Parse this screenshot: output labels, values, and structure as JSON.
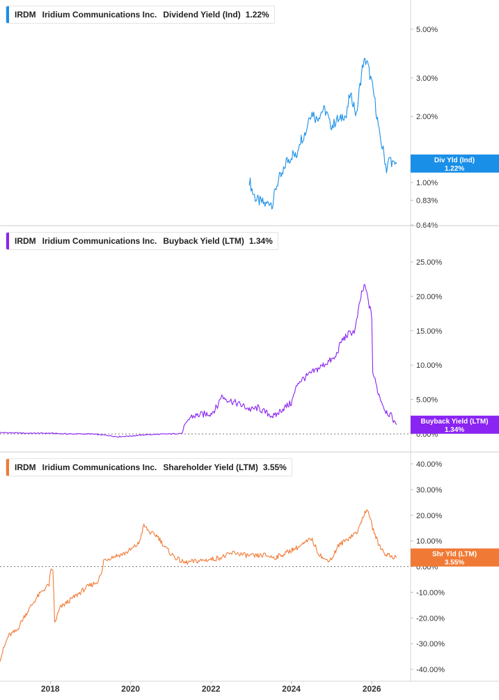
{
  "chart_data": [
    {
      "type": "line",
      "ticker": "IRDM",
      "company": "Iridium Communications Inc.",
      "metric": "Dividend Yield (Ind)",
      "current_value": "1.22%",
      "badge": [
        "Div Yld (Ind)",
        "1.22%"
      ],
      "color": "#1a8fe8",
      "yscale": "log",
      "ylim": [
        0.64,
        6.2
      ],
      "y_ticks": [
        {
          "v": 5.0,
          "label": "5.00%"
        },
        {
          "v": 3.0,
          "label": "3.00%"
        },
        {
          "v": 2.0,
          "label": "2.00%"
        },
        {
          "v": 1.0,
          "label": "1.00%"
        },
        {
          "v": 0.83,
          "label": "0.83%"
        },
        {
          "v": 0.64,
          "label": "0.64%"
        }
      ],
      "series": [
        {
          "x": [
            "2022-12-15",
            "2023-01-15",
            "2023-02-15",
            "2023-03-15",
            "2023-04-15",
            "2023-05-15",
            "2023-06-15",
            "2023-07-15",
            "2023-08-15",
            "2023-09-15",
            "2023-10-15",
            "2023-11-15",
            "2023-12-15",
            "2024-01-15",
            "2024-02-15",
            "2024-03-15",
            "2024-04-15",
            "2024-05-15",
            "2024-06-15",
            "2024-07-15",
            "2024-08-15",
            "2024-09-15",
            "2024-10-15",
            "2024-11-15",
            "2024-12-15",
            "2025-01-15",
            "2025-02-15",
            "2025-03-15",
            "2025-04-15",
            "2025-05-15",
            "2025-06-15",
            "2025-07-15",
            "2025-08-15",
            "2025-09-15",
            "2025-10-15",
            "2025-11-15",
            "2025-12-15",
            "2026-01-15",
            "2026-02-15",
            "2026-03-15",
            "2026-04-15",
            "2026-05-15",
            "2026-06-15",
            "2026-07-15",
            "2026-08-15"
          ],
          "values": [
            1.03,
            0.9,
            0.84,
            0.82,
            0.81,
            0.79,
            0.82,
            0.8,
            0.95,
            1.05,
            1.08,
            1.25,
            1.28,
            1.35,
            1.3,
            1.55,
            1.62,
            1.72,
            2.05,
            2.08,
            1.95,
            2.05,
            2.15,
            2.1,
            1.85,
            1.82,
            1.95,
            1.9,
            2.05,
            1.98,
            2.5,
            2.35,
            2.0,
            2.75,
            3.5,
            3.6,
            3.1,
            2.6,
            2.05,
            1.6,
            1.4,
            1.15,
            1.3,
            1.2,
            1.22
          ]
        }
      ]
    },
    {
      "type": "line",
      "ticker": "IRDM",
      "company": "Iridium Communications Inc.",
      "metric": "Buyback Yield (LTM)",
      "current_value": "1.34%",
      "badge": [
        "Buyback Yield (LTM)",
        "1.34%"
      ],
      "color": "#8a24f2",
      "yscale": "linear",
      "ylim": [
        -1.0,
        28.0
      ],
      "zero_line": true,
      "y_ticks": [
        {
          "v": 25,
          "label": "25.00%"
        },
        {
          "v": 20,
          "label": "20.00%"
        },
        {
          "v": 15,
          "label": "15.00%"
        },
        {
          "v": 10,
          "label": "10.00%"
        },
        {
          "v": 5,
          "label": "5.00%"
        },
        {
          "v": 0,
          "label": "0.00%"
        }
      ],
      "series": [
        {
          "x": [
            "2016-10-01",
            "2017-06-01",
            "2018-01-01",
            "2018-06-01",
            "2019-01-01",
            "2019-06-01",
            "2019-09-01",
            "2020-01-01",
            "2020-06-01",
            "2021-01-01",
            "2021-04-15",
            "2021-05-01",
            "2021-07-01",
            "2021-10-01",
            "2022-01-01",
            "2022-03-01",
            "2022-04-01",
            "2022-06-01",
            "2022-08-01",
            "2022-10-01",
            "2023-01-01",
            "2023-03-01",
            "2023-05-01",
            "2023-08-01",
            "2023-10-01",
            "2024-01-01",
            "2024-03-01",
            "2024-06-01",
            "2024-09-01",
            "2024-12-01",
            "2025-02-01",
            "2025-04-01",
            "2025-06-01",
            "2025-08-01",
            "2025-10-01",
            "2025-11-01",
            "2026-01-01",
            "2026-01-10",
            "2026-03-01",
            "2026-05-01",
            "2026-07-01",
            "2026-08-15"
          ],
          "values": [
            0.2,
            0.1,
            0.1,
            0.0,
            0.0,
            -0.2,
            -0.4,
            -0.3,
            -0.1,
            0.0,
            0.1,
            1.2,
            2.5,
            2.8,
            3.0,
            4.0,
            5.5,
            5.0,
            4.6,
            4.2,
            3.5,
            3.8,
            3.2,
            2.5,
            3.5,
            4.5,
            7.5,
            8.5,
            9.5,
            10.5,
            11.0,
            13.5,
            14.5,
            15.0,
            20.5,
            21.5,
            17.0,
            9.0,
            6.0,
            3.5,
            2.5,
            1.34
          ]
        }
      ]
    },
    {
      "type": "line",
      "ticker": "IRDM",
      "company": "Iridium Communications Inc.",
      "metric": "Shareholder Yield (LTM)",
      "current_value": "3.55%",
      "badge": [
        "Shr Yld (LTM)",
        "3.55%"
      ],
      "color": "#f07a35",
      "yscale": "linear",
      "ylim": [
        -43.0,
        45.0
      ],
      "zero_line": true,
      "y_ticks": [
        {
          "v": 40,
          "label": "40.00%"
        },
        {
          "v": 30,
          "label": "30.00%"
        },
        {
          "v": 20,
          "label": "20.00%"
        },
        {
          "v": 10,
          "label": "10.00%"
        },
        {
          "v": 0,
          "label": "0.00%"
        },
        {
          "v": -10,
          "label": "-10.00%"
        },
        {
          "v": -20,
          "label": "-20.00%"
        },
        {
          "v": -30,
          "label": "-30.00%"
        },
        {
          "v": -40,
          "label": "-40.00%"
        }
      ],
      "series": [
        {
          "x": [
            "2016-10-01",
            "2016-12-15",
            "2017-03-01",
            "2017-05-01",
            "2017-07-01",
            "2017-09-01",
            "2017-11-01",
            "2017-12-20",
            "2018-01-05",
            "2018-01-25",
            "2018-02-10",
            "2018-04-01",
            "2018-06-01",
            "2018-09-01",
            "2018-12-01",
            "2019-03-01",
            "2019-04-15",
            "2019-05-01",
            "2019-08-01",
            "2019-11-01",
            "2020-01-01",
            "2020-03-15",
            "2020-05-01",
            "2020-07-01",
            "2020-09-01",
            "2020-11-01",
            "2021-01-01",
            "2021-03-01",
            "2021-05-01",
            "2021-08-01",
            "2021-11-01",
            "2022-02-01",
            "2022-05-01",
            "2022-08-01",
            "2022-11-01",
            "2023-02-01",
            "2023-05-01",
            "2023-08-01",
            "2023-11-01",
            "2024-01-01",
            "2024-03-01",
            "2024-05-01",
            "2024-07-01",
            "2024-09-01",
            "2024-11-01",
            "2025-01-01",
            "2025-03-01",
            "2025-05-01",
            "2025-07-01",
            "2025-09-01",
            "2025-10-15",
            "2025-12-01",
            "2026-01-01",
            "2026-03-01",
            "2026-05-01",
            "2026-07-01",
            "2026-08-15"
          ],
          "values": [
            -36.0,
            -27.0,
            -25.0,
            -20.0,
            -16.0,
            -12.0,
            -9.0,
            -7.0,
            -2.0,
            -1.0,
            -22.0,
            -16.0,
            -14.0,
            -11.0,
            -8.0,
            -6.0,
            -2.5,
            2.5,
            4.0,
            5.0,
            6.5,
            9.0,
            16.0,
            13.0,
            12.0,
            8.0,
            5.0,
            3.0,
            1.5,
            2.0,
            2.5,
            3.0,
            4.0,
            5.5,
            4.5,
            4.0,
            4.5,
            3.5,
            5.0,
            6.5,
            7.5,
            9.0,
            11.0,
            5.5,
            2.5,
            3.0,
            8.0,
            10.0,
            12.0,
            14.0,
            20.0,
            22.0,
            16.0,
            9.0,
            5.0,
            4.0,
            3.55
          ]
        }
      ]
    }
  ],
  "x_axis": {
    "range": [
      "2016-10-01",
      "2026-12-20"
    ],
    "ticks": [
      {
        "date": "2018-01-01",
        "label": "2018"
      },
      {
        "date": "2020-01-01",
        "label": "2020"
      },
      {
        "date": "2022-01-01",
        "label": "2022"
      },
      {
        "date": "2024-01-01",
        "label": "2024"
      },
      {
        "date": "2026-01-01",
        "label": "2026"
      }
    ]
  }
}
